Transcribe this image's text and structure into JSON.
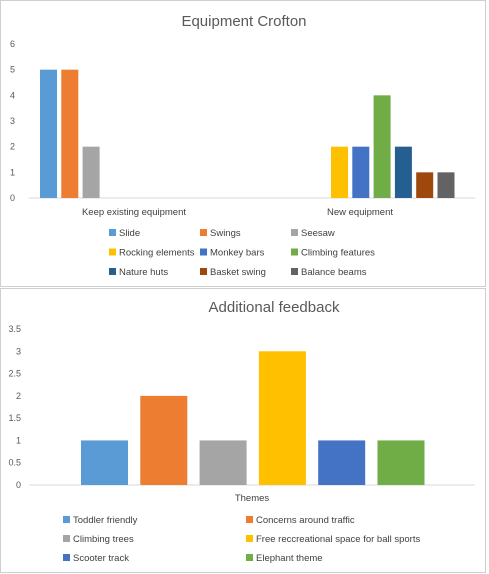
{
  "charts": [
    {
      "chart_data": {
        "type": "bar",
        "title": "Equipment Crofton",
        "categories": [
          "Keep existing equipment",
          "New equipment"
        ],
        "ylim": [
          0,
          6
        ],
        "yticks": [
          "0",
          "1",
          "2",
          "3",
          "4",
          "5",
          "6"
        ],
        "grid": false,
        "legend_position": "bottom",
        "series": [
          {
            "name": "Slide",
            "color": "#5B9BD5",
            "values": [
              5,
              null
            ]
          },
          {
            "name": "Swings",
            "color": "#ED7D31",
            "values": [
              5,
              null
            ]
          },
          {
            "name": "Seesaw",
            "color": "#A5A5A5",
            "values": [
              2,
              null
            ]
          },
          {
            "name": "Rocking elements",
            "color": "#FFC000",
            "values": [
              null,
              2
            ]
          },
          {
            "name": "Monkey bars",
            "color": "#4472C4",
            "values": [
              null,
              2
            ]
          },
          {
            "name": "Climbing features",
            "color": "#70AD47",
            "values": [
              null,
              4
            ]
          },
          {
            "name": "Nature huts",
            "color": "#255E91",
            "values": [
              null,
              2
            ]
          },
          {
            "name": "Basket swing",
            "color": "#9E480E",
            "values": [
              null,
              1
            ]
          },
          {
            "name": "Balance beams",
            "color": "#636363",
            "values": [
              null,
              1
            ]
          }
        ]
      }
    },
    {
      "chart_data": {
        "type": "bar",
        "title": "Additional feedback",
        "categories": [
          "Themes"
        ],
        "xlabel": "Themes",
        "ylim": [
          0,
          3.5
        ],
        "yticks": [
          "0",
          "0.5",
          "1",
          "1.5",
          "2",
          "2.5",
          "3",
          "3.5"
        ],
        "grid": false,
        "legend_position": "bottom",
        "series": [
          {
            "name": "Toddler friendly",
            "color": "#5B9BD5",
            "values": [
              1
            ]
          },
          {
            "name": "Concerns around traffic",
            "color": "#ED7D31",
            "values": [
              2
            ]
          },
          {
            "name": "Climbing trees",
            "color": "#A5A5A5",
            "values": [
              1
            ]
          },
          {
            "name": "Free reccreational space for ball sports",
            "color": "#FFC000",
            "values": [
              3
            ]
          },
          {
            "name": "Scooter track",
            "color": "#4472C4",
            "values": [
              1
            ]
          },
          {
            "name": "Elephant theme",
            "color": "#70AD47",
            "values": [
              1
            ]
          }
        ]
      }
    }
  ]
}
